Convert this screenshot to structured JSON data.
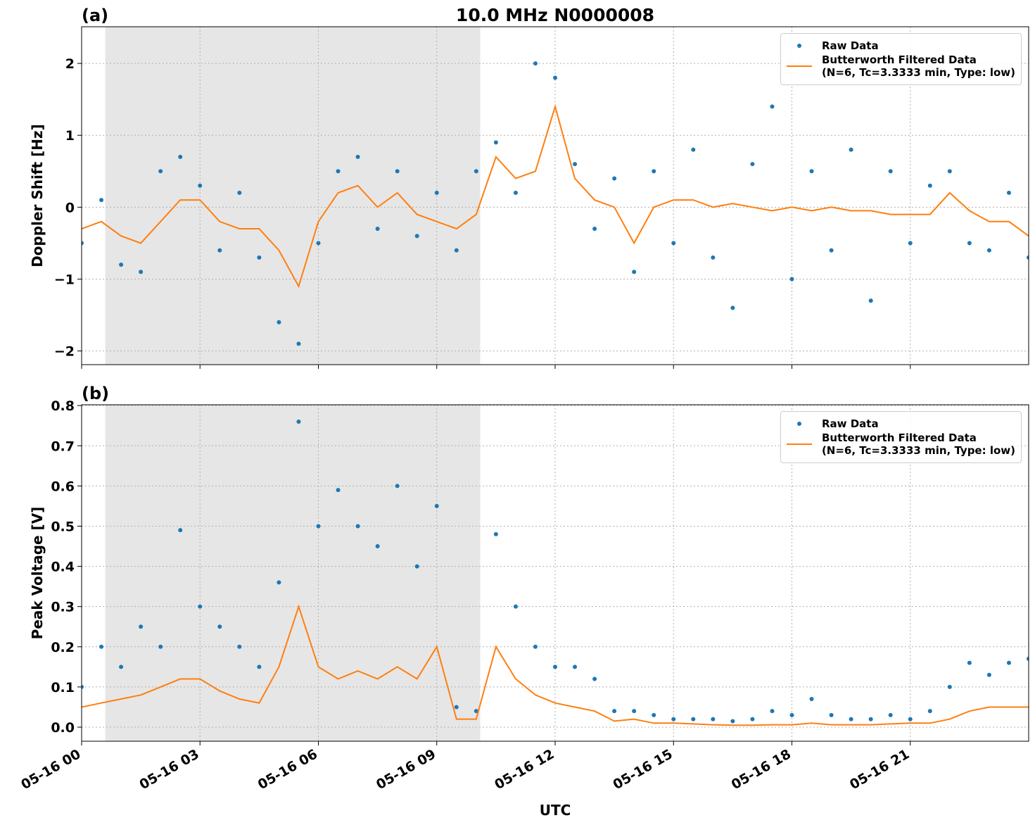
{
  "chart_data": [
    {
      "type": "scatter-line",
      "title": "10.0 MHz N0000008",
      "panel": "(a)",
      "ylabel": "Doppler Shift [Hz]",
      "xlim": [
        0,
        24
      ],
      "ylim": [
        -2.19,
        2.51
      ],
      "xticks": [
        0,
        3,
        6,
        9,
        12,
        15,
        18,
        21
      ],
      "yticks": [
        {
          "value": -2,
          "label": "−2"
        },
        {
          "value": -1,
          "label": "−1"
        },
        0,
        1,
        2
      ],
      "grid": true,
      "legend": "upper right",
      "shade": [
        0.6,
        10.1
      ],
      "x": [
        0,
        0.5,
        1,
        1.5,
        2,
        2.5,
        3,
        3.5,
        4,
        4.5,
        5,
        5.5,
        6,
        6.5,
        7,
        7.5,
        8,
        8.5,
        9,
        9.5,
        10,
        10.5,
        11,
        11.5,
        12,
        12.5,
        13,
        13.5,
        14,
        14.5,
        15,
        15.5,
        16,
        16.5,
        17,
        17.5,
        18,
        18.5,
        19,
        19.5,
        20,
        20.5,
        21,
        21.5,
        22,
        22.5,
        23,
        23.5,
        24
      ],
      "series": [
        {
          "name": "Raw Data",
          "color": "#1f77b4",
          "style": "dots",
          "values": [
            -0.5,
            0.1,
            -0.8,
            -0.9,
            0.5,
            0.7,
            0.3,
            -0.6,
            0.2,
            -0.7,
            -1.6,
            -1.9,
            -0.5,
            0.5,
            0.7,
            -0.3,
            0.5,
            -0.4,
            0.2,
            -0.6,
            0.5,
            0.9,
            0.2,
            2.0,
            1.8,
            0.6,
            -0.3,
            0.4,
            -0.9,
            0.5,
            -0.5,
            0.8,
            -0.7,
            -1.4,
            0.6,
            1.4,
            -1.0,
            0.5,
            -0.6,
            0.8,
            -1.3,
            0.5,
            -0.5,
            0.3,
            0.5,
            -0.5,
            -0.6,
            0.2,
            -0.7
          ]
        },
        {
          "name": "Butterworth Filtered Data\n(N=6, Tc=3.3333 min, Type: low)",
          "color": "#ff7f0e",
          "style": "line",
          "values": [
            -0.3,
            -0.2,
            -0.4,
            -0.5,
            -0.2,
            0.1,
            0.1,
            -0.2,
            -0.3,
            -0.3,
            -0.6,
            -1.1,
            -0.2,
            0.2,
            0.3,
            0.0,
            0.2,
            -0.1,
            -0.2,
            -0.3,
            -0.1,
            0.7,
            0.4,
            0.5,
            1.4,
            0.4,
            0.1,
            0.0,
            -0.5,
            0.0,
            0.1,
            0.1,
            0.0,
            0.05,
            0.0,
            -0.05,
            0.0,
            -0.05,
            0.0,
            -0.05,
            -0.05,
            -0.1,
            -0.1,
            -0.1,
            0.2,
            -0.05,
            -0.2,
            -0.2,
            -0.4
          ]
        }
      ]
    },
    {
      "type": "scatter-line",
      "panel": "(b)",
      "ylabel": "Peak Voltage [V]",
      "xlabel": "UTC",
      "xlim": [
        0,
        24
      ],
      "ylim": [
        -0.035,
        0.802
      ],
      "xticks": [
        {
          "value": 0,
          "label": "05-16 00"
        },
        {
          "value": 3,
          "label": "05-16 03"
        },
        {
          "value": 6,
          "label": "05-16 06"
        },
        {
          "value": 9,
          "label": "05-16 09"
        },
        {
          "value": 12,
          "label": "05-16 12"
        },
        {
          "value": 15,
          "label": "05-16 15"
        },
        {
          "value": 18,
          "label": "05-16 18"
        },
        {
          "value": 21,
          "label": "05-16 21"
        }
      ],
      "yticks": [
        {
          "value": 0,
          "label": "0.0"
        },
        0.1,
        0.2,
        0.3,
        0.4,
        0.5,
        0.6,
        0.7,
        0.8
      ],
      "grid": true,
      "legend": "upper right",
      "shade": [
        0.6,
        10.1
      ],
      "x": [
        0,
        0.5,
        1,
        1.5,
        2,
        2.5,
        3,
        3.5,
        4,
        4.5,
        5,
        5.5,
        6,
        6.5,
        7,
        7.5,
        8,
        8.5,
        9,
        9.5,
        10,
        10.5,
        11,
        11.5,
        12,
        12.5,
        13,
        13.5,
        14,
        14.5,
        15,
        15.5,
        16,
        16.5,
        17,
        17.5,
        18,
        18.5,
        19,
        19.5,
        20,
        20.5,
        21,
        21.5,
        22,
        22.5,
        23,
        23.5,
        24
      ],
      "series": [
        {
          "name": "Raw Data",
          "color": "#1f77b4",
          "style": "dots",
          "values": [
            0.1,
            0.2,
            0.15,
            0.25,
            0.2,
            0.49,
            0.3,
            0.25,
            0.2,
            0.15,
            0.36,
            0.76,
            0.5,
            0.59,
            0.5,
            0.45,
            0.6,
            0.4,
            0.55,
            0.05,
            0.04,
            0.48,
            0.3,
            0.2,
            0.15,
            0.15,
            0.12,
            0.04,
            0.04,
            0.03,
            0.02,
            0.02,
            0.02,
            0.015,
            0.02,
            0.04,
            0.03,
            0.07,
            0.03,
            0.02,
            0.02,
            0.03,
            0.02,
            0.04,
            0.1,
            0.16,
            0.13,
            0.16,
            0.17
          ]
        },
        {
          "name": "Butterworth Filtered Data\n(N=6, Tc=3.3333 min, Type: low)",
          "color": "#ff7f0e",
          "style": "line",
          "values": [
            0.05,
            0.06,
            0.07,
            0.08,
            0.1,
            0.12,
            0.12,
            0.09,
            0.07,
            0.06,
            0.15,
            0.3,
            0.15,
            0.12,
            0.14,
            0.12,
            0.15,
            0.12,
            0.2,
            0.02,
            0.02,
            0.2,
            0.12,
            0.08,
            0.06,
            0.05,
            0.04,
            0.015,
            0.02,
            0.01,
            0.01,
            0.008,
            0.006,
            0.005,
            0.005,
            0.006,
            0.006,
            0.01,
            0.006,
            0.006,
            0.006,
            0.008,
            0.01,
            0.01,
            0.02,
            0.04,
            0.05,
            0.05,
            0.05
          ]
        }
      ]
    }
  ]
}
